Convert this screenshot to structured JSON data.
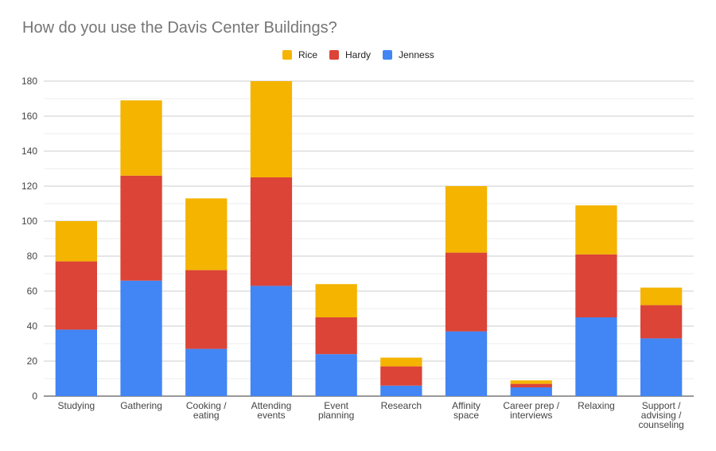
{
  "chart_data": {
    "type": "bar",
    "stacked": true,
    "title": "How do you use the Davis Center Buildings?",
    "xlabel": "",
    "ylabel": "",
    "ylim": [
      0,
      180
    ],
    "yticks": [
      0,
      20,
      40,
      60,
      80,
      100,
      120,
      140,
      160,
      180
    ],
    "grid": true,
    "legend_position": "top-center",
    "categories": [
      "Studying",
      "Gathering",
      "Cooking / eating",
      "Attending events",
      "Event planning",
      "Research",
      "Affinity space",
      "Career prep / interviews",
      "Relaxing",
      "Support / advising / counseling"
    ],
    "series": [
      {
        "name": "Jenness",
        "color": "#4285f4",
        "values": [
          38,
          66,
          27,
          63,
          24,
          6,
          37,
          5,
          45,
          33
        ]
      },
      {
        "name": "Hardy",
        "color": "#db4437",
        "values": [
          39,
          60,
          45,
          62,
          21,
          11,
          45,
          2,
          36,
          19
        ]
      },
      {
        "name": "Rice",
        "color": "#f4b400",
        "values": [
          23,
          43,
          41,
          55,
          19,
          5,
          38,
          2,
          28,
          10
        ]
      }
    ],
    "legend_order": [
      "Rice",
      "Hardy",
      "Jenness"
    ]
  }
}
